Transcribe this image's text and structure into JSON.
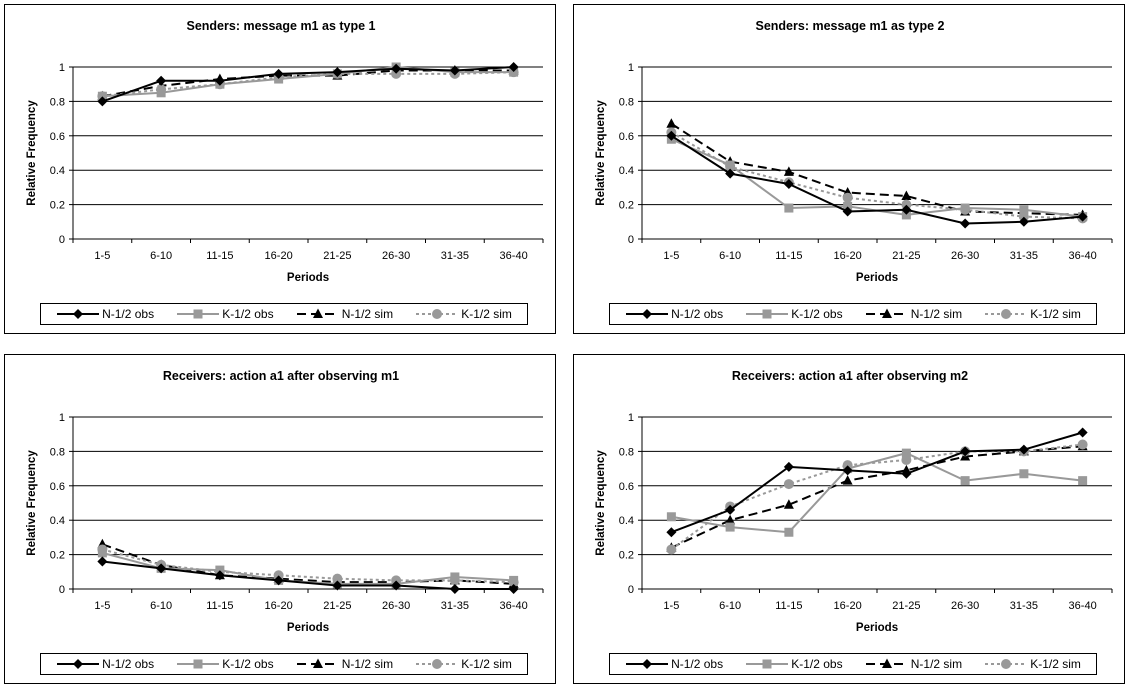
{
  "charts": [
    {
      "type": "line",
      "title": "Senders: message m1 as type 1",
      "xlabel": "Periods",
      "ylabel": "Relative Frequency",
      "ylim": [
        0,
        1
      ],
      "yticks": [
        "0",
        "0.2",
        "0.4",
        "0.6",
        "0.8",
        "1"
      ],
      "categories": [
        "1-5",
        "6-10",
        "11-15",
        "16-20",
        "21-25",
        "26-30",
        "31-35",
        "36-40"
      ],
      "grid": "horizontal",
      "legend_position": "bottom",
      "series": [
        {
          "name": "N-1/2 obs",
          "values": [
            0.8,
            0.92,
            0.92,
            0.96,
            0.97,
            0.99,
            0.98,
            1.0
          ]
        },
        {
          "name": "K-1/2 obs",
          "values": [
            0.83,
            0.85,
            0.9,
            0.93,
            0.96,
            1.0,
            0.97,
            0.97
          ]
        },
        {
          "name": "N-1/2 sim",
          "values": [
            0.83,
            0.89,
            0.93,
            0.95,
            0.95,
            0.98,
            0.98,
            0.98
          ]
        },
        {
          "name": "K-1/2 sim",
          "values": [
            0.83,
            0.87,
            0.9,
            0.94,
            0.96,
            0.96,
            0.96,
            0.97
          ]
        }
      ]
    },
    {
      "type": "line",
      "title": "Senders: message m1 as type 2",
      "xlabel": "Periods",
      "ylabel": "Relative Frequency",
      "ylim": [
        0,
        1
      ],
      "yticks": [
        "0",
        "0.2",
        "0.4",
        "0.6",
        "0.8",
        "1"
      ],
      "categories": [
        "1-5",
        "6-10",
        "11-15",
        "16-20",
        "21-25",
        "26-30",
        "31-35",
        "36-40"
      ],
      "grid": "horizontal",
      "legend_position": "bottom",
      "series": [
        {
          "name": "N-1/2 obs",
          "values": [
            0.6,
            0.38,
            0.32,
            0.16,
            0.17,
            0.09,
            0.1,
            0.13
          ]
        },
        {
          "name": "K-1/2 obs",
          "values": [
            0.58,
            0.43,
            0.18,
            0.19,
            0.14,
            0.18,
            0.17,
            0.13
          ]
        },
        {
          "name": "N-1/2 sim",
          "values": [
            0.67,
            0.45,
            0.39,
            0.27,
            0.25,
            0.16,
            0.15,
            0.14
          ]
        },
        {
          "name": "K-1/2 sim",
          "values": [
            0.62,
            0.42,
            0.33,
            0.24,
            0.2,
            0.17,
            0.13,
            0.12
          ]
        }
      ]
    },
    {
      "type": "line",
      "title": "Receivers: action a1 after observing m1",
      "xlabel": "Periods",
      "ylabel": "Relative Frequency",
      "ylim": [
        0,
        1
      ],
      "yticks": [
        "0",
        "0.2",
        "0.4",
        "0.6",
        "0.8",
        "1"
      ],
      "categories": [
        "1-5",
        "6-10",
        "11-15",
        "16-20",
        "21-25",
        "26-30",
        "31-35",
        "36-40"
      ],
      "grid": "horizontal",
      "legend_position": "bottom",
      "series": [
        {
          "name": "N-1/2 obs",
          "values": [
            0.16,
            0.12,
            0.08,
            0.05,
            0.02,
            0.02,
            0.0,
            0.0
          ]
        },
        {
          "name": "K-1/2 obs",
          "values": [
            0.21,
            0.12,
            0.11,
            0.05,
            0.03,
            0.03,
            0.07,
            0.05
          ]
        },
        {
          "name": "N-1/2 sim",
          "values": [
            0.26,
            0.14,
            0.08,
            0.06,
            0.04,
            0.04,
            0.05,
            0.03
          ]
        },
        {
          "name": "K-1/2 sim",
          "values": [
            0.23,
            0.14,
            0.1,
            0.08,
            0.06,
            0.05,
            0.05,
            0.04
          ]
        }
      ]
    },
    {
      "type": "line",
      "title": "Receivers: action a1 after observing m2",
      "xlabel": "Periods",
      "ylabel": "Relative Frequency",
      "ylim": [
        0,
        1
      ],
      "yticks": [
        "0",
        "0.2",
        "0.4",
        "0.6",
        "0.8",
        "1"
      ],
      "categories": [
        "1-5",
        "6-10",
        "11-15",
        "16-20",
        "21-25",
        "26-30",
        "31-35",
        "36-40"
      ],
      "grid": "horizontal",
      "legend_position": "bottom",
      "series": [
        {
          "name": "N-1/2 obs",
          "values": [
            0.33,
            0.46,
            0.71,
            0.69,
            0.67,
            0.8,
            0.81,
            0.91
          ]
        },
        {
          "name": "K-1/2 obs",
          "values": [
            0.42,
            0.36,
            0.33,
            0.7,
            0.79,
            0.63,
            0.67,
            0.63
          ]
        },
        {
          "name": "N-1/2 sim",
          "values": [
            0.24,
            0.4,
            0.49,
            0.63,
            0.69,
            0.77,
            0.8,
            0.83
          ]
        },
        {
          "name": "K-1/2 sim",
          "values": [
            0.23,
            0.48,
            0.61,
            0.72,
            0.75,
            0.8,
            0.8,
            0.84
          ]
        }
      ]
    }
  ],
  "style": {
    "series": [
      {
        "color": "#000000",
        "dash": "",
        "marker": "diamond",
        "width": 2
      },
      {
        "color": "#999999",
        "dash": "",
        "marker": "square",
        "width": 2
      },
      {
        "color": "#000000",
        "dash": "9,5",
        "marker": "triangle",
        "width": 2
      },
      {
        "color": "#999999",
        "dash": "3,3",
        "marker": "circle",
        "width": 2
      }
    ]
  }
}
